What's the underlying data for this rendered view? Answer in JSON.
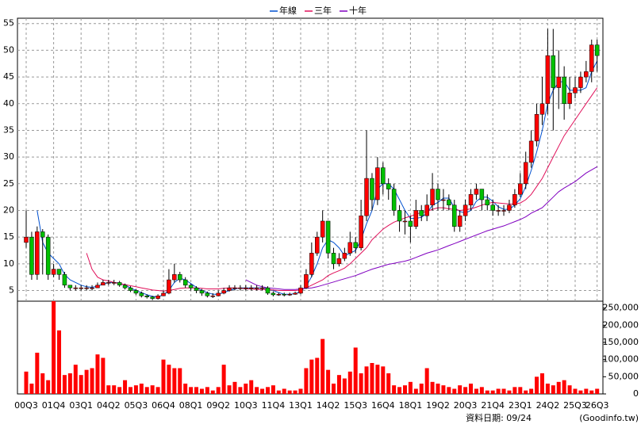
{
  "chart_data": {
    "type": "candlestick",
    "up_color": "#ff0000",
    "down_color": "#00c000",
    "grid": true,
    "ylim": [
      3,
      56
    ],
    "yticks": [
      5,
      10,
      15,
      20,
      25,
      30,
      35,
      40,
      45,
      50,
      55
    ],
    "categories": [
      "00Q3",
      null,
      null,
      null,
      null,
      "01Q4",
      null,
      null,
      null,
      null,
      "03Q1",
      null,
      null,
      null,
      null,
      "04Q2",
      null,
      null,
      null,
      null,
      "05Q3",
      null,
      null,
      null,
      null,
      "06Q4",
      null,
      null,
      null,
      null,
      "08Q1",
      null,
      null,
      null,
      null,
      "09Q2",
      null,
      null,
      null,
      null,
      "10Q3",
      null,
      null,
      null,
      null,
      "11Q4",
      null,
      null,
      null,
      null,
      "13Q1",
      null,
      null,
      null,
      null,
      "14Q2",
      null,
      null,
      null,
      null,
      "15Q3",
      null,
      null,
      null,
      null,
      "16Q4",
      null,
      null,
      null,
      null,
      "18Q1",
      null,
      null,
      null,
      null,
      "19Q2",
      null,
      null,
      null,
      null,
      "20Q3",
      null,
      null,
      null,
      null,
      "21Q4",
      null,
      null,
      null,
      null,
      "23Q1",
      null,
      null,
      null,
      null,
      "24Q2",
      null,
      null,
      null,
      null,
      "25Q3",
      null,
      null,
      null,
      "26Q3"
    ],
    "open": [
      14,
      15,
      8,
      16,
      15,
      8,
      9,
      8,
      6,
      5.5,
      5.5,
      5.5,
      5.5,
      5.5,
      6,
      6.5,
      6.5,
      6.5,
      6,
      5.5,
      5,
      4.5,
      4,
      3.8,
      3.5,
      4,
      4.5,
      7,
      8,
      7,
      6,
      5.5,
      5,
      4.5,
      4,
      4,
      4.5,
      5,
      5.5,
      5.5,
      5.5,
      5.5,
      5.5,
      5.5,
      5.5,
      4.5,
      4.2,
      4.3,
      4.2,
      4.3,
      4.5,
      5.5,
      8,
      12,
      15,
      18,
      12,
      10,
      11,
      12,
      14,
      13,
      19,
      26,
      22,
      28,
      25,
      24,
      20,
      18,
      18,
      17,
      20,
      19,
      21,
      24,
      22,
      22,
      21,
      17,
      19,
      21,
      23,
      24,
      22,
      21,
      20,
      20,
      20,
      21,
      23,
      25,
      29,
      33,
      38,
      40,
      49,
      43,
      45,
      40,
      42,
      43,
      45,
      46,
      51
    ],
    "high": [
      20,
      16,
      17,
      16.5,
      15.5,
      10,
      9,
      8.5,
      6,
      6,
      6,
      6,
      6,
      6.5,
      7,
      7,
      7,
      6.8,
      6.3,
      5.8,
      5.3,
      4.8,
      4.3,
      4,
      4.3,
      5,
      9,
      10,
      8.5,
      7.5,
      6.3,
      5.8,
      5.3,
      4.8,
      4.5,
      5,
      5.5,
      6,
      6,
      6,
      6,
      6,
      6,
      6,
      5.8,
      4.8,
      4.6,
      4.6,
      4.6,
      4.8,
      6,
      9,
      14,
      16,
      20,
      18,
      13,
      12,
      13,
      16,
      15,
      22,
      35,
      27,
      30,
      29,
      26,
      25,
      21,
      20,
      19,
      22,
      21,
      23,
      27,
      25,
      24,
      23,
      22,
      20,
      22,
      24,
      25,
      24,
      23,
      22,
      21,
      21,
      22,
      24,
      27,
      31,
      35,
      40,
      45,
      54,
      54,
      50,
      47,
      45,
      45,
      46,
      48,
      52,
      52
    ],
    "low": [
      13,
      7,
      7,
      8,
      7,
      7.5,
      7,
      5.5,
      5,
      5,
      5,
      5,
      5,
      5.5,
      6,
      6,
      6,
      5.7,
      5.2,
      4.7,
      4.2,
      3.7,
      3.5,
      3.2,
      3.3,
      4,
      4.3,
      6.5,
      6.5,
      5.5,
      5,
      4.5,
      4,
      3.7,
      3.6,
      3.9,
      4.3,
      4.8,
      5,
      5,
      5,
      5,
      5,
      5,
      4.2,
      3.9,
      4,
      3.9,
      4,
      4.2,
      4.3,
      5.3,
      7.5,
      11.5,
      14,
      11,
      9,
      9.5,
      10.5,
      11.5,
      12,
      12.5,
      18,
      20,
      21,
      23,
      22,
      19,
      16,
      15.5,
      14,
      16.5,
      18,
      18,
      20,
      20,
      20,
      20,
      16,
      16,
      18,
      20,
      22,
      20,
      20,
      19,
      19,
      19,
      19.5,
      20.5,
      22.5,
      24,
      28,
      32,
      36,
      38,
      35,
      39,
      37,
      39,
      41,
      42,
      44,
      44,
      46
    ],
    "close": [
      15,
      8,
      16,
      15,
      8,
      9,
      8,
      6,
      5.5,
      5.5,
      5.5,
      5.5,
      5.5,
      6,
      6.5,
      6.5,
      6.5,
      6,
      5.5,
      5,
      4.5,
      4,
      3.8,
      3.5,
      4,
      4.5,
      7,
      8,
      7,
      6,
      5.5,
      5,
      4.5,
      4,
      4,
      4.5,
      5,
      5.5,
      5.5,
      5.5,
      5.5,
      5.5,
      5.5,
      5.5,
      4.5,
      4.2,
      4.3,
      4.2,
      4.3,
      4.5,
      5.5,
      8,
      12,
      15,
      18,
      12,
      10,
      11,
      12,
      14,
      13,
      19,
      26,
      22,
      28,
      25,
      24,
      20,
      18,
      18,
      17,
      20,
      19,
      21,
      24,
      22,
      22,
      21,
      17,
      19,
      21,
      23,
      24,
      22,
      21,
      20,
      20,
      20,
      21,
      23,
      25,
      29,
      33,
      38,
      40,
      49,
      43,
      45,
      40,
      42,
      43,
      45,
      46,
      51,
      49
    ],
    "series": [
      {
        "name": "年線",
        "color": "#0050d0",
        "values": [
          null,
          null,
          20,
          14,
          12,
          11,
          10,
          8,
          7,
          6.5,
          6,
          5.7,
          5.6,
          5.8,
          6.2,
          6.5,
          6.5,
          6.4,
          6,
          5.5,
          5,
          4.6,
          4.2,
          3.9,
          3.8,
          4.2,
          5,
          6.5,
          7.3,
          7,
          6.3,
          5.6,
          5,
          4.6,
          4.3,
          4.3,
          4.6,
          5,
          5.3,
          5.5,
          5.5,
          5.5,
          5.5,
          5.5,
          5.3,
          5,
          4.6,
          4.3,
          4.3,
          4.4,
          4.8,
          5.8,
          7.6,
          10,
          13,
          14.5,
          14,
          13,
          11.5,
          12,
          12.5,
          14.5,
          17.5,
          20,
          24,
          25,
          25,
          24,
          22,
          20,
          18.5,
          18.5,
          18.7,
          19.5,
          21,
          21.5,
          22.3,
          22.3,
          20.5,
          19.8,
          19.5,
          20,
          21.7,
          22.5,
          22.5,
          21.7,
          20.7,
          20.2,
          20.2,
          21,
          22.2,
          24.5,
          27.5,
          31,
          35,
          40,
          42.5,
          44,
          44.2,
          42.5,
          42.5,
          42.5,
          43,
          46,
          48
        ]
      },
      {
        "name": "三年",
        "color": "#e0105a",
        "values": [
          null,
          null,
          null,
          null,
          null,
          null,
          null,
          null,
          null,
          null,
          null,
          12,
          9,
          7.5,
          7,
          6.8,
          6.5,
          6.3,
          6.1,
          5.9,
          5.7,
          5.5,
          5.3,
          5.1,
          5,
          4.9,
          5,
          5.2,
          5.4,
          5.5,
          5.5,
          5.5,
          5.4,
          5.3,
          5.3,
          5.3,
          5.4,
          5.5,
          5.5,
          5.4,
          5.3,
          5.3,
          5.2,
          5.2,
          5.2,
          5.1,
          5,
          5,
          5,
          5,
          5.1,
          5.5,
          6,
          6.5,
          7,
          7.8,
          8.3,
          8.7,
          9.2,
          10,
          11,
          12,
          13,
          14.5,
          15.5,
          16.5,
          17.2,
          17.8,
          18.2,
          18.6,
          18.9,
          19.3,
          19.6,
          19.8,
          20.2,
          20.5,
          20.5,
          20.3,
          20.2,
          20,
          20.1,
          20.3,
          20.6,
          21,
          21.3,
          21.5,
          21.4,
          21.3,
          21.2,
          21.2,
          21.4,
          22,
          23,
          24.5,
          26,
          28,
          30,
          32,
          34,
          35.5,
          37,
          38.5,
          40,
          41.5,
          43
        ]
      },
      {
        "name": "十年",
        "color": "#8000c0",
        "values": [
          null,
          null,
          null,
          null,
          null,
          null,
          null,
          null,
          null,
          null,
          null,
          null,
          null,
          null,
          null,
          null,
          null,
          null,
          null,
          null,
          null,
          null,
          null,
          null,
          null,
          null,
          null,
          null,
          null,
          null,
          null,
          null,
          null,
          null,
          null,
          null,
          null,
          null,
          null,
          null,
          7,
          6.5,
          6,
          5.7,
          5.5,
          5.4,
          5.3,
          5.2,
          5.2,
          5.2,
          5.3,
          5.4,
          5.5,
          5.7,
          6,
          6.3,
          6.6,
          6.9,
          7.2,
          7.5,
          7.8,
          8.2,
          8.6,
          9,
          9.3,
          9.6,
          9.9,
          10.1,
          10.3,
          10.5,
          10.8,
          11.2,
          11.6,
          12,
          12.3,
          12.6,
          13,
          13.4,
          13.8,
          14.2,
          14.6,
          15,
          15.4,
          15.8,
          16.2,
          16.5,
          16.8,
          17.1,
          17.5,
          17.9,
          18.3,
          18.8,
          19.5,
          20,
          20.5,
          21.5,
          22.5,
          23.5,
          24.2,
          24.8,
          25.4,
          26.2,
          27,
          27.6,
          28.2
        ]
      }
    ],
    "volume": {
      "color": "#ff0000",
      "ylim": [
        0,
        270000
      ],
      "yticks": [
        0,
        {
          "value": 50000,
          "label": "50,000"
        },
        {
          "value": 100000,
          "label": "100,000"
        },
        {
          "value": 150000,
          "label": "150,000"
        },
        {
          "value": 200000,
          "label": "200,000"
        },
        {
          "value": 250000,
          "label": "250,000"
        }
      ],
      "values": [
        65000,
        30000,
        120000,
        60000,
        40000,
        275000,
        185000,
        55000,
        60000,
        85000,
        55000,
        70000,
        75000,
        115000,
        105000,
        25000,
        25000,
        20000,
        40000,
        20000,
        25000,
        30000,
        20000,
        25000,
        20000,
        100000,
        85000,
        75000,
        75000,
        30000,
        20000,
        20000,
        15000,
        20000,
        10000,
        20000,
        85000,
        25000,
        35000,
        20000,
        30000,
        40000,
        20000,
        15000,
        20000,
        25000,
        10000,
        15000,
        10000,
        10000,
        15000,
        75000,
        100000,
        105000,
        160000,
        70000,
        30000,
        55000,
        45000,
        65000,
        135000,
        60000,
        80000,
        90000,
        85000,
        80000,
        60000,
        25000,
        20000,
        25000,
        35000,
        15000,
        30000,
        75000,
        35000,
        30000,
        25000,
        20000,
        15000,
        25000,
        20000,
        30000,
        15000,
        20000,
        10000,
        10000,
        15000,
        15000,
        10000,
        20000,
        20000,
        10000,
        15000,
        50000,
        60000,
        30000,
        25000,
        35000,
        40000,
        25000,
        15000,
        10000,
        15000,
        10000,
        15000
      ]
    },
    "source_note": "資料日期: 09/24",
    "credit": "(Goodinfo.tw)"
  }
}
